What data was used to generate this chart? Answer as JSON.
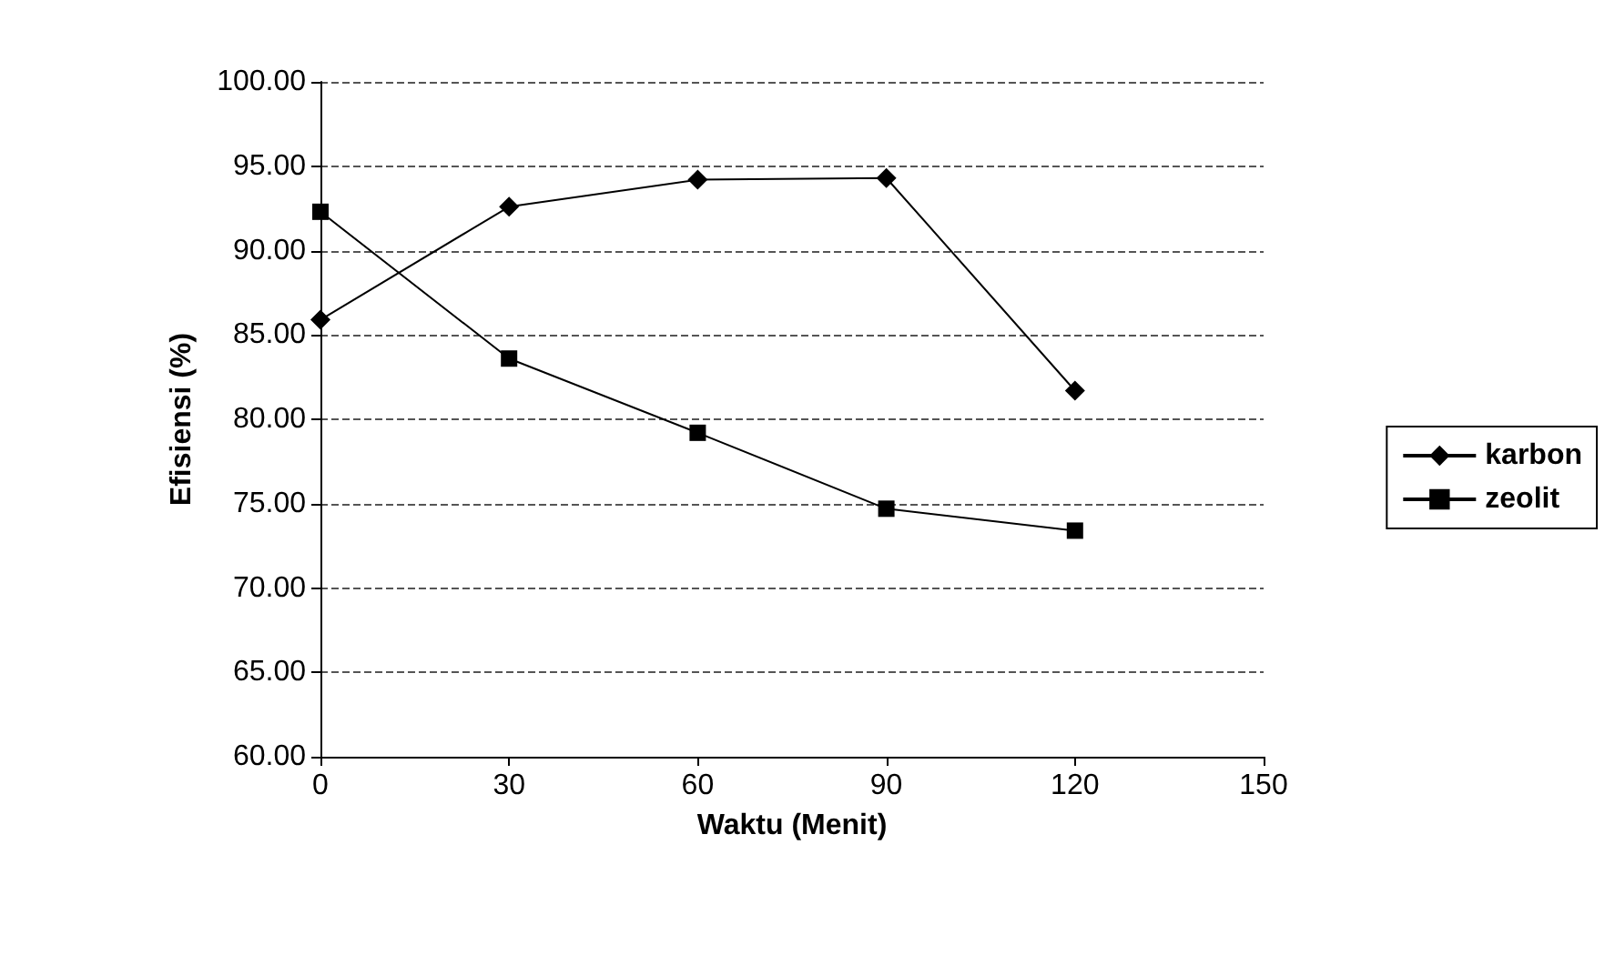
{
  "chart_data": {
    "type": "line",
    "xlabel": "Waktu (Menit)",
    "ylabel": "Efisiensi (%)",
    "x": [
      0,
      30,
      60,
      90,
      120
    ],
    "series": [
      {
        "name": "karbon",
        "color": "#000000",
        "marker": "diamond",
        "values": [
          85.9,
          92.6,
          94.2,
          94.3,
          81.7
        ]
      },
      {
        "name": "zeolit",
        "color": "#000000",
        "marker": "square",
        "values": [
          92.3,
          83.6,
          79.2,
          74.7,
          73.4
        ]
      }
    ],
    "xlim": [
      0,
      150
    ],
    "xticks": [
      0,
      30,
      60,
      90,
      120,
      150
    ],
    "ylim": [
      60,
      100
    ],
    "yticks": [
      {
        "value": 60,
        "label": "60.00"
      },
      {
        "value": 65,
        "label": "65.00"
      },
      {
        "value": 70,
        "label": "70.00"
      },
      {
        "value": 75,
        "label": "75.00"
      },
      {
        "value": 80,
        "label": "80.00"
      },
      {
        "value": 85,
        "label": "85.00"
      },
      {
        "value": 90,
        "label": "90.00"
      },
      {
        "value": 95,
        "label": "95.00"
      },
      {
        "value": 100,
        "label": "100.00"
      }
    ],
    "grid": "y",
    "legend": "right"
  }
}
